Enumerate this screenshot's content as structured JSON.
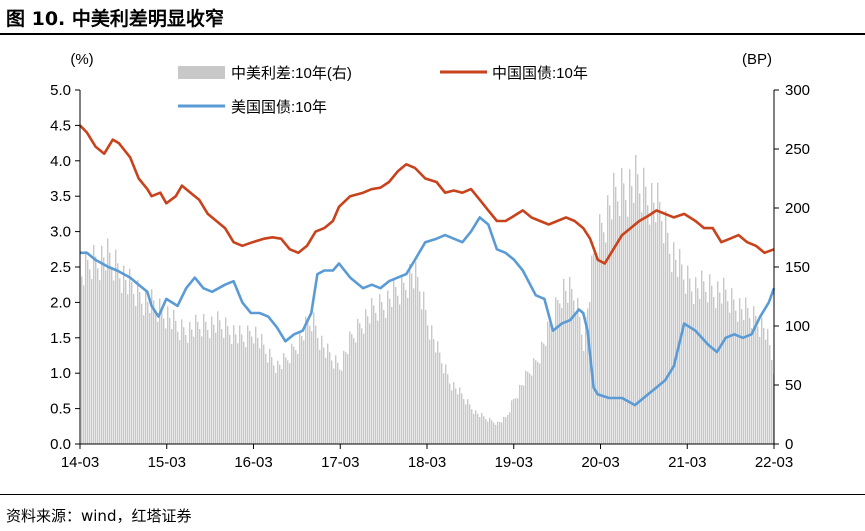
{
  "figure": {
    "title": "图 10. 中美利差明显收窄",
    "source": "资料来源：wind，红塔证券"
  },
  "colors": {
    "spread_bar": "#c8c8c8",
    "china_line": "#c8421c",
    "us_line": "#5b9bd5",
    "axis": "#000000"
  },
  "chart_data": {
    "type": "line",
    "title": "",
    "left_axis_label": "(%)",
    "right_axis_label": "(BP)",
    "left_ylim": [
      0,
      5
    ],
    "left_ticks": [
      "0.0",
      "0.5",
      "1.0",
      "1.5",
      "2.0",
      "2.5",
      "3.0",
      "3.5",
      "4.0",
      "4.5",
      "5.0"
    ],
    "right_ylim": [
      0,
      300
    ],
    "right_ticks": [
      "0",
      "50",
      "100",
      "150",
      "200",
      "250",
      "300"
    ],
    "x_ticks": [
      "14-03",
      "15-03",
      "16-03",
      "17-03",
      "18-03",
      "19-03",
      "20-03",
      "21-03",
      "22-03"
    ],
    "xlim": [
      2014.17,
      2022.21
    ],
    "legend_position": "top",
    "series": [
      {
        "name": "中美利差:10年(右)",
        "type": "area",
        "axis": "right",
        "x": [
          2014.17,
          2014.3,
          2014.45,
          2014.6,
          2014.75,
          2014.9,
          2015.05,
          2015.17,
          2015.3,
          2015.45,
          2015.6,
          2015.75,
          2015.9,
          2016.05,
          2016.17,
          2016.3,
          2016.45,
          2016.55,
          2016.7,
          2016.85,
          2017.0,
          2017.1,
          2017.17,
          2017.3,
          2017.45,
          2017.6,
          2017.75,
          2017.9,
          2018.0,
          2018.1,
          2018.17,
          2018.3,
          2018.45,
          2018.6,
          2018.75,
          2018.85,
          2019.0,
          2019.1,
          2019.17,
          2019.3,
          2019.45,
          2019.6,
          2019.75,
          2019.9,
          2020.0,
          2020.1,
          2020.17,
          2020.3,
          2020.45,
          2020.6,
          2020.75,
          2020.9,
          2021.0,
          2021.1,
          2021.17,
          2021.3,
          2021.45,
          2021.6,
          2021.75,
          2021.9,
          2022.0,
          2022.1,
          2022.21
        ],
        "values": [
          160,
          175,
          180,
          170,
          150,
          140,
          130,
          125,
          110,
          110,
          115,
          115,
          110,
          100,
          110,
          90,
          75,
          80,
          100,
          120,
          90,
          80,
          75,
          100,
          120,
          130,
          140,
          150,
          165,
          150,
          125,
          90,
          60,
          45,
          30,
          25,
          20,
          25,
          40,
          60,
          80,
          110,
          150,
          140,
          100,
          170,
          200,
          230,
          245,
          250,
          240,
          220,
          190,
          170,
          160,
          150,
          150,
          145,
          135,
          125,
          120,
          110,
          70
        ]
      },
      {
        "name": "中国国债:10年",
        "type": "line",
        "axis": "left",
        "x": [
          2014.17,
          2014.25,
          2014.35,
          2014.45,
          2014.55,
          2014.62,
          2014.75,
          2014.85,
          2014.95,
          2015.0,
          2015.1,
          2015.17,
          2015.28,
          2015.35,
          2015.45,
          2015.55,
          2015.65,
          2015.75,
          2015.85,
          2015.95,
          2016.05,
          2016.17,
          2016.3,
          2016.4,
          2016.5,
          2016.6,
          2016.7,
          2016.8,
          2016.9,
          2017.0,
          2017.1,
          2017.17,
          2017.3,
          2017.45,
          2017.55,
          2017.65,
          2017.75,
          2017.85,
          2017.95,
          2018.05,
          2018.17,
          2018.3,
          2018.4,
          2018.5,
          2018.6,
          2018.7,
          2018.8,
          2018.9,
          2019.0,
          2019.1,
          2019.17,
          2019.3,
          2019.4,
          2019.5,
          2019.6,
          2019.7,
          2019.8,
          2019.9,
          2020.0,
          2020.08,
          2020.17,
          2020.25,
          2020.35,
          2020.45,
          2020.55,
          2020.65,
          2020.75,
          2020.85,
          2020.95,
          2021.05,
          2021.17,
          2021.3,
          2021.4,
          2021.5,
          2021.6,
          2021.7,
          2021.8,
          2021.9,
          2022.0,
          2022.1,
          2022.21
        ],
        "values": [
          4.5,
          4.4,
          4.2,
          4.1,
          4.3,
          4.25,
          4.05,
          3.75,
          3.6,
          3.5,
          3.55,
          3.4,
          3.5,
          3.65,
          3.55,
          3.45,
          3.25,
          3.15,
          3.05,
          2.85,
          2.8,
          2.85,
          2.9,
          2.92,
          2.9,
          2.75,
          2.7,
          2.8,
          3.0,
          3.05,
          3.15,
          3.35,
          3.5,
          3.55,
          3.6,
          3.62,
          3.7,
          3.85,
          3.95,
          3.9,
          3.75,
          3.7,
          3.55,
          3.58,
          3.55,
          3.6,
          3.45,
          3.3,
          3.15,
          3.15,
          3.2,
          3.3,
          3.2,
          3.15,
          3.1,
          3.15,
          3.2,
          3.15,
          3.05,
          2.9,
          2.6,
          2.55,
          2.75,
          2.95,
          3.05,
          3.15,
          3.22,
          3.3,
          3.25,
          3.2,
          3.25,
          3.15,
          3.05,
          3.05,
          2.85,
          2.9,
          2.95,
          2.85,
          2.8,
          2.7,
          2.75
        ]
      },
      {
        "name": "美国国债:10年",
        "type": "line",
        "axis": "left",
        "x": [
          2014.17,
          2014.25,
          2014.35,
          2014.5,
          2014.6,
          2014.75,
          2014.85,
          2014.95,
          2015.0,
          2015.08,
          2015.17,
          2015.3,
          2015.4,
          2015.5,
          2015.6,
          2015.7,
          2015.85,
          2015.95,
          2016.05,
          2016.15,
          2016.25,
          2016.35,
          2016.45,
          2016.55,
          2016.65,
          2016.75,
          2016.85,
          2016.92,
          2017.0,
          2017.1,
          2017.17,
          2017.3,
          2017.45,
          2017.55,
          2017.65,
          2017.75,
          2017.85,
          2017.95,
          2018.05,
          2018.17,
          2018.3,
          2018.4,
          2018.5,
          2018.6,
          2018.7,
          2018.8,
          2018.9,
          2019.0,
          2019.1,
          2019.2,
          2019.3,
          2019.45,
          2019.55,
          2019.65,
          2019.75,
          2019.85,
          2019.95,
          2020.0,
          2020.05,
          2020.12,
          2020.17,
          2020.3,
          2020.45,
          2020.6,
          2020.75,
          2020.85,
          2020.95,
          2021.05,
          2021.17,
          2021.3,
          2021.45,
          2021.55,
          2021.65,
          2021.75,
          2021.85,
          2021.95,
          2022.05,
          2022.15,
          2022.21
        ],
        "values": [
          2.7,
          2.7,
          2.6,
          2.5,
          2.45,
          2.35,
          2.25,
          2.15,
          1.95,
          1.8,
          2.05,
          1.95,
          2.2,
          2.35,
          2.2,
          2.15,
          2.25,
          2.3,
          2.0,
          1.85,
          1.85,
          1.8,
          1.65,
          1.45,
          1.55,
          1.6,
          1.85,
          2.4,
          2.45,
          2.45,
          2.55,
          2.35,
          2.2,
          2.25,
          2.2,
          2.3,
          2.35,
          2.4,
          2.6,
          2.85,
          2.9,
          2.95,
          2.9,
          2.85,
          3.0,
          3.2,
          3.1,
          2.75,
          2.7,
          2.6,
          2.45,
          2.1,
          2.05,
          1.6,
          1.7,
          1.75,
          1.9,
          1.85,
          1.6,
          0.8,
          0.7,
          0.65,
          0.65,
          0.55,
          0.7,
          0.8,
          0.9,
          1.1,
          1.7,
          1.6,
          1.4,
          1.3,
          1.5,
          1.55,
          1.5,
          1.55,
          1.8,
          2.0,
          2.2
        ]
      }
    ]
  }
}
